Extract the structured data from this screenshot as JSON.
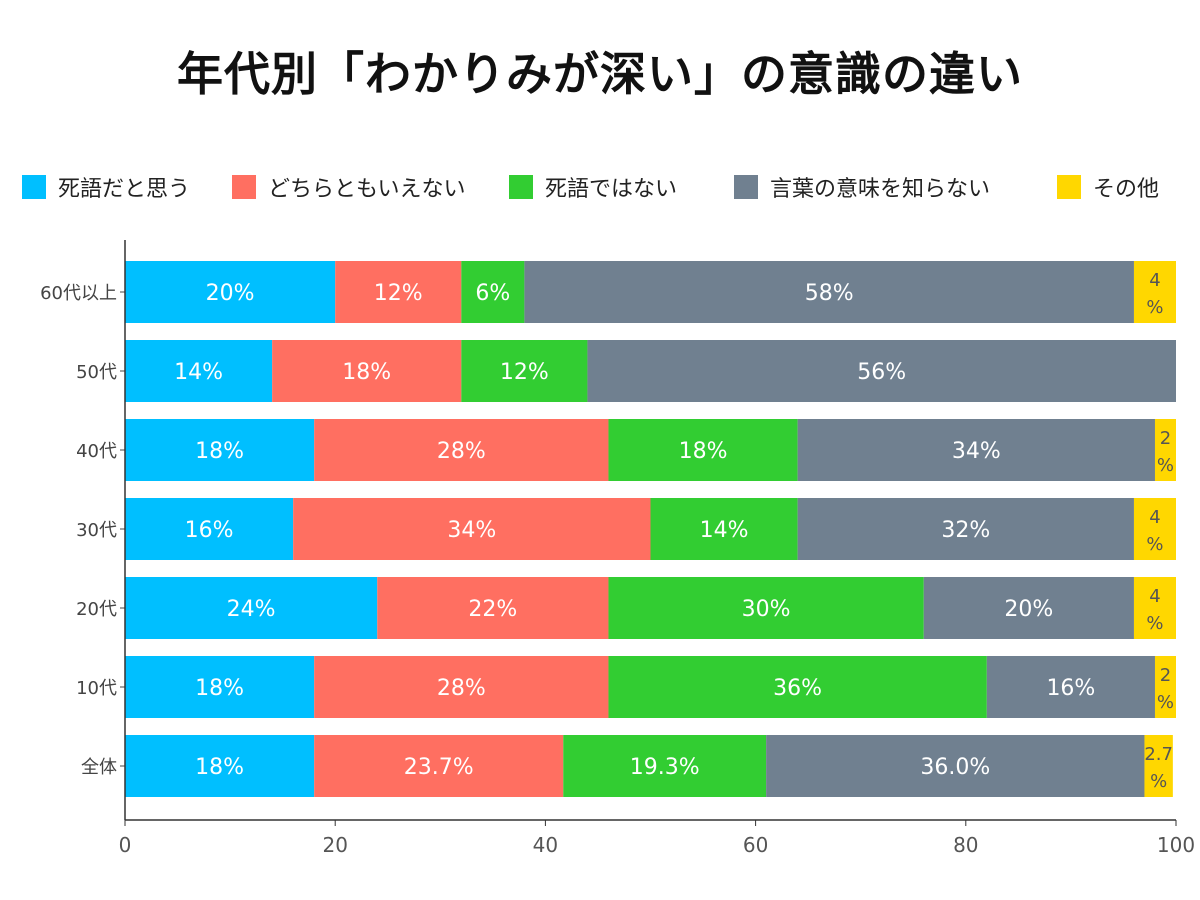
{
  "chart_data": {
    "type": "bar",
    "orientation": "horizontal",
    "stacked": true,
    "title": "年代別「わかりみが深い」の意識の違い",
    "categories": [
      "60代以上",
      "50代",
      "40代",
      "30代",
      "20代",
      "10代",
      "全体"
    ],
    "series": [
      {
        "name": "死語だと思う",
        "color": "#00bfff",
        "values": [
          20,
          14,
          18,
          16,
          24,
          18,
          18
        ],
        "labels": [
          "20%",
          "14%",
          "18%",
          "16%",
          "24%",
          "18%",
          "18%"
        ]
      },
      {
        "name": "どちらともいえない",
        "color": "#ff6f61",
        "values": [
          12,
          18,
          28,
          34,
          22,
          28,
          23.7
        ],
        "labels": [
          "12%",
          "18%",
          "28%",
          "34%",
          "22%",
          "28%",
          "23.7%"
        ]
      },
      {
        "name": "死語ではない",
        "color": "#32cd32",
        "values": [
          6,
          12,
          18,
          14,
          30,
          36,
          19.3
        ],
        "labels": [
          "6%",
          "12%",
          "18%",
          "14%",
          "30%",
          "36%",
          "19.3%"
        ]
      },
      {
        "name": "言葉の意味を知らない",
        "color": "#708090",
        "values": [
          58,
          56,
          34,
          32,
          20,
          16,
          36.0
        ],
        "labels": [
          "58%",
          "56%",
          "34%",
          "32%",
          "20%",
          "16%",
          "36.0%"
        ]
      },
      {
        "name": "その他",
        "color": "#ffd700",
        "values": [
          4,
          0,
          2,
          4,
          4,
          2,
          2.7
        ],
        "labels": [
          "4%",
          "",
          "2%",
          "4%",
          "4%",
          "2%",
          "2.7%"
        ]
      }
    ],
    "xlim": [
      0,
      100
    ],
    "xticks": [
      "0",
      "20",
      "40",
      "60",
      "80",
      "100"
    ],
    "legend_position": "top",
    "grid": false
  }
}
